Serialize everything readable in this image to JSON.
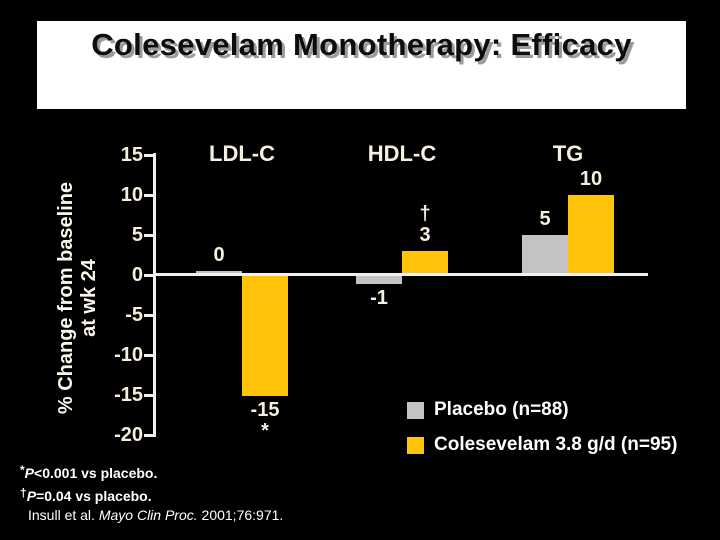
{
  "slide": {
    "title": "Colesevelam Monotherapy: Efficacy",
    "footnotes": [
      {
        "marker": "*",
        "p": "P",
        "rest": "<0.001 vs placebo."
      },
      {
        "marker": "†",
        "p": "P",
        "rest": "=0.04 vs placebo."
      }
    ],
    "citation": {
      "prefix": "Insull et al. ",
      "journal": "Mayo Clin Proc.",
      "suffix": " 2001;76:971."
    }
  },
  "chart_data": {
    "type": "bar",
    "title": "",
    "ylabel_lines": [
      "% Change from baseline",
      "at wk 24"
    ],
    "categories": [
      "LDL-C",
      "HDL-C",
      "TG"
    ],
    "series": [
      {
        "name": "Placebo (n=88)",
        "color": "#c3c3c3",
        "values": [
          0,
          -1,
          5
        ]
      },
      {
        "name": "Colesevelam 3.8 g/d (n=95)",
        "color": "#ffc40a",
        "values": [
          -15,
          3,
          10
        ]
      }
    ],
    "sig_markers": [
      [
        null,
        null,
        null
      ],
      [
        "*",
        "†",
        null
      ]
    ],
    "bar_value_labels": [
      [
        "0",
        "-1",
        "5"
      ],
      [
        "-15",
        "3",
        "10"
      ]
    ],
    "ylim": [
      -20,
      15
    ],
    "yticks": [
      15,
      10,
      5,
      0,
      -5,
      -10,
      -15,
      -20
    ],
    "grid": false,
    "legend_position": "bottom-right",
    "colors": {
      "placebo": "#c3c3c3",
      "colesevelam": "#ffc40a",
      "axis": "#f0f0f0",
      "tick_text": "#f5eedb"
    }
  }
}
